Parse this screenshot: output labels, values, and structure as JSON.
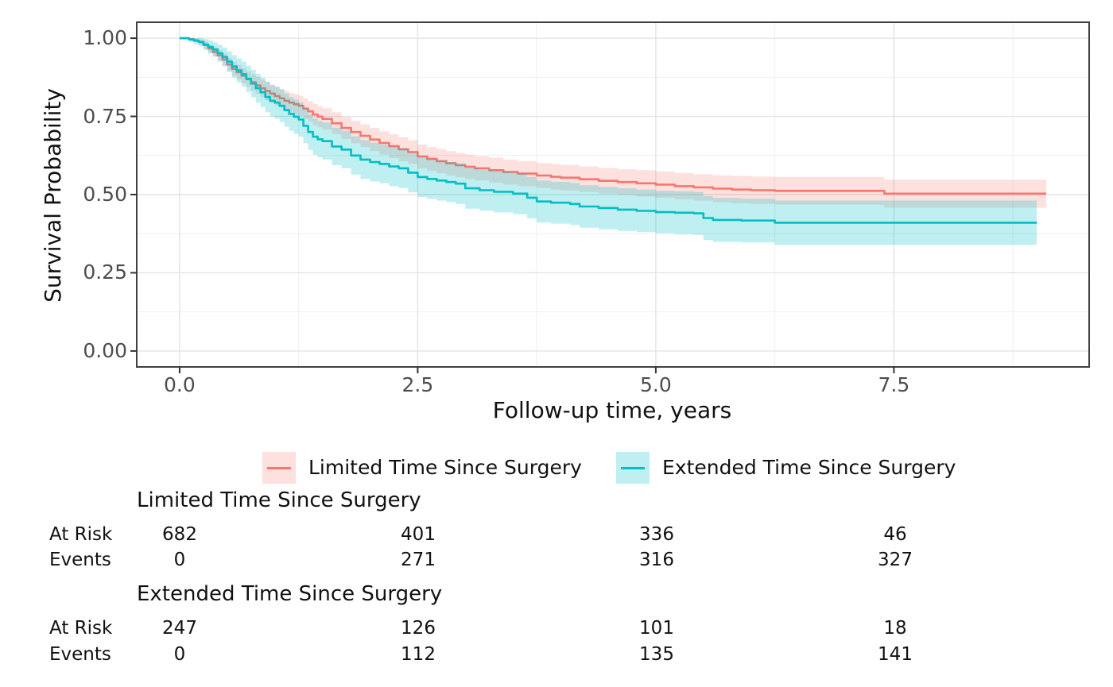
{
  "figure": {
    "xlabel": "Follow-up time, years",
    "ylabel": "Survival Probability"
  },
  "legend": {
    "items": [
      {
        "label": "Limited Time Since Surgery",
        "color": "#F8766D",
        "band_color": "rgba(248,118,109,0.22)"
      },
      {
        "label": "Extended Time Since Surgery",
        "color": "#00BFC4",
        "band_color": "rgba(0,191,196,0.25)"
      }
    ]
  },
  "risk_table": {
    "groups": [
      {
        "name": "Limited Time Since Surgery",
        "rows": [
          {
            "label": "At Risk",
            "values": [
              "682",
              "401",
              "336",
              "46"
            ]
          },
          {
            "label": "Events",
            "values": [
              "0",
              "271",
              "316",
              "327"
            ]
          }
        ]
      },
      {
        "name": "Extended Time Since Surgery",
        "rows": [
          {
            "label": "At Risk",
            "values": [
              "247",
              "126",
              "101",
              "18"
            ]
          },
          {
            "label": "Events",
            "values": [
              "0",
              "112",
              "135",
              "141"
            ]
          }
        ]
      }
    ]
  },
  "chart_data": {
    "type": "line",
    "subtype": "kaplan-meier-step-curves-with-confidence-bands",
    "title": "",
    "xlabel": "Follow-up time, years",
    "ylabel": "Survival Probability",
    "xlim": [
      -0.45,
      9.55
    ],
    "ylim": [
      -0.051,
      1.051
    ],
    "x_major_ticks": [
      0,
      2.5,
      5,
      7.5
    ],
    "x_tick_labels": [
      "0.0",
      "2.5",
      "5.0",
      "7.5"
    ],
    "x_minor_gridlines": [
      1.25,
      3.75,
      6.25,
      8.75
    ],
    "y_major_ticks": [
      0,
      0.25,
      0.5,
      0.75,
      1.0
    ],
    "y_tick_labels": [
      "0.00",
      "0.25",
      "0.50",
      "0.75",
      "1.00"
    ],
    "y_minor_gridlines": [
      0.125,
      0.375,
      0.625,
      0.875
    ],
    "grid": true,
    "grid_major_color": "#e3e3e3",
    "grid_minor_color": "#f1f1f1",
    "border_color": "#404040",
    "tick_color": "#333333",
    "legend_position": "bottom",
    "series": [
      {
        "name": "Limited Time Since Surgery",
        "color": "#F8766D",
        "band_color": "rgba(248,118,109,0.22)",
        "points_format": [
          "time_years",
          "survival",
          "ci_lower",
          "ci_upper"
        ],
        "points": [
          [
            0,
            1.0,
            1.0,
            1.0
          ],
          [
            0.1,
            0.997,
            0.993,
            1.0
          ],
          [
            0.15,
            0.993,
            0.987,
            0.999
          ],
          [
            0.2,
            0.988,
            0.98,
            0.996
          ],
          [
            0.25,
            0.978,
            0.967,
            0.989
          ],
          [
            0.3,
            0.967,
            0.954,
            0.98
          ],
          [
            0.35,
            0.956,
            0.941,
            0.971
          ],
          [
            0.4,
            0.945,
            0.928,
            0.962
          ],
          [
            0.45,
            0.932,
            0.913,
            0.951
          ],
          [
            0.5,
            0.916,
            0.895,
            0.937
          ],
          [
            0.55,
            0.902,
            0.88,
            0.924
          ],
          [
            0.6,
            0.891,
            0.868,
            0.914
          ],
          [
            0.65,
            0.88,
            0.856,
            0.904
          ],
          [
            0.7,
            0.869,
            0.844,
            0.894
          ],
          [
            0.75,
            0.859,
            0.833,
            0.885
          ],
          [
            0.8,
            0.849,
            0.822,
            0.876
          ],
          [
            0.85,
            0.84,
            0.812,
            0.868
          ],
          [
            0.9,
            0.831,
            0.802,
            0.86
          ],
          [
            0.95,
            0.823,
            0.794,
            0.852
          ],
          [
            1.0,
            0.815,
            0.785,
            0.845
          ],
          [
            1.05,
            0.808,
            0.778,
            0.838
          ],
          [
            1.1,
            0.8,
            0.769,
            0.831
          ],
          [
            1.15,
            0.794,
            0.763,
            0.825
          ],
          [
            1.2,
            0.789,
            0.757,
            0.821
          ],
          [
            1.25,
            0.784,
            0.752,
            0.816
          ],
          [
            1.3,
            0.775,
            0.742,
            0.808
          ],
          [
            1.35,
            0.766,
            0.733,
            0.799
          ],
          [
            1.4,
            0.756,
            0.722,
            0.79
          ],
          [
            1.45,
            0.749,
            0.715,
            0.783
          ],
          [
            1.5,
            0.742,
            0.708,
            0.776
          ],
          [
            1.6,
            0.728,
            0.693,
            0.763
          ],
          [
            1.7,
            0.713,
            0.678,
            0.748
          ],
          [
            1.8,
            0.7,
            0.664,
            0.736
          ],
          [
            1.9,
            0.688,
            0.652,
            0.724
          ],
          [
            2.0,
            0.676,
            0.639,
            0.713
          ],
          [
            2.1,
            0.665,
            0.628,
            0.702
          ],
          [
            2.2,
            0.655,
            0.617,
            0.693
          ],
          [
            2.3,
            0.645,
            0.607,
            0.683
          ],
          [
            2.4,
            0.636,
            0.598,
            0.674
          ],
          [
            2.5,
            0.622,
            0.584,
            0.66
          ],
          [
            2.6,
            0.614,
            0.576,
            0.652
          ],
          [
            2.7,
            0.607,
            0.568,
            0.646
          ],
          [
            2.8,
            0.6,
            0.561,
            0.639
          ],
          [
            2.9,
            0.594,
            0.555,
            0.633
          ],
          [
            3.0,
            0.589,
            0.55,
            0.628
          ],
          [
            3.1,
            0.584,
            0.545,
            0.623
          ],
          [
            3.25,
            0.578,
            0.538,
            0.618
          ],
          [
            3.4,
            0.572,
            0.532,
            0.612
          ],
          [
            3.55,
            0.567,
            0.527,
            0.607
          ],
          [
            3.75,
            0.561,
            0.521,
            0.601
          ],
          [
            3.9,
            0.557,
            0.516,
            0.598
          ],
          [
            4.0,
            0.554,
            0.513,
            0.595
          ],
          [
            4.2,
            0.549,
            0.508,
            0.59
          ],
          [
            4.4,
            0.544,
            0.503,
            0.585
          ],
          [
            4.6,
            0.54,
            0.499,
            0.581
          ],
          [
            4.8,
            0.536,
            0.494,
            0.578
          ],
          [
            5.0,
            0.532,
            0.49,
            0.574
          ],
          [
            5.2,
            0.527,
            0.485,
            0.569
          ],
          [
            5.4,
            0.523,
            0.481,
            0.565
          ],
          [
            5.6,
            0.519,
            0.476,
            0.562
          ],
          [
            5.8,
            0.516,
            0.472,
            0.56
          ],
          [
            6.0,
            0.514,
            0.47,
            0.558
          ],
          [
            6.25,
            0.512,
            0.468,
            0.556
          ],
          [
            7.35,
            0.512,
            0.468,
            0.556
          ],
          [
            7.4,
            0.503,
            0.458,
            0.548
          ],
          [
            9.1,
            0.503,
            0.458,
            0.548
          ]
        ]
      },
      {
        "name": "Extended Time Since Surgery",
        "color": "#00BFC4",
        "band_color": "rgba(0,191,196,0.25)",
        "points_format": [
          "time_years",
          "survival",
          "ci_lower",
          "ci_upper"
        ],
        "points": [
          [
            0,
            1.0,
            1.0,
            1.0
          ],
          [
            0.1,
            0.996,
            0.988,
            1.0
          ],
          [
            0.15,
            0.992,
            0.981,
            1.0
          ],
          [
            0.2,
            0.988,
            0.974,
            1.0
          ],
          [
            0.25,
            0.98,
            0.963,
            0.997
          ],
          [
            0.3,
            0.972,
            0.951,
            0.993
          ],
          [
            0.35,
            0.964,
            0.941,
            0.987
          ],
          [
            0.4,
            0.952,
            0.925,
            0.979
          ],
          [
            0.45,
            0.94,
            0.91,
            0.97
          ],
          [
            0.5,
            0.925,
            0.892,
            0.958
          ],
          [
            0.55,
            0.91,
            0.874,
            0.946
          ],
          [
            0.6,
            0.897,
            0.859,
            0.935
          ],
          [
            0.65,
            0.885,
            0.845,
            0.925
          ],
          [
            0.7,
            0.87,
            0.828,
            0.912
          ],
          [
            0.75,
            0.855,
            0.811,
            0.899
          ],
          [
            0.8,
            0.84,
            0.794,
            0.886
          ],
          [
            0.85,
            0.827,
            0.78,
            0.874
          ],
          [
            0.9,
            0.812,
            0.763,
            0.861
          ],
          [
            0.95,
            0.8,
            0.75,
            0.85
          ],
          [
            1.0,
            0.794,
            0.743,
            0.845
          ],
          [
            1.05,
            0.784,
            0.732,
            0.836
          ],
          [
            1.1,
            0.77,
            0.717,
            0.823
          ],
          [
            1.15,
            0.758,
            0.704,
            0.812
          ],
          [
            1.2,
            0.749,
            0.694,
            0.804
          ],
          [
            1.25,
            0.74,
            0.685,
            0.795
          ],
          [
            1.3,
            0.72,
            0.664,
            0.776
          ],
          [
            1.35,
            0.7,
            0.643,
            0.757
          ],
          [
            1.4,
            0.685,
            0.627,
            0.743
          ],
          [
            1.45,
            0.677,
            0.619,
            0.735
          ],
          [
            1.5,
            0.671,
            0.612,
            0.73
          ],
          [
            1.6,
            0.654,
            0.594,
            0.714
          ],
          [
            1.7,
            0.644,
            0.584,
            0.704
          ],
          [
            1.8,
            0.625,
            0.564,
            0.686
          ],
          [
            1.9,
            0.612,
            0.55,
            0.674
          ],
          [
            2.0,
            0.604,
            0.542,
            0.666
          ],
          [
            2.1,
            0.598,
            0.536,
            0.66
          ],
          [
            2.2,
            0.59,
            0.527,
            0.653
          ],
          [
            2.3,
            0.584,
            0.521,
            0.647
          ],
          [
            2.4,
            0.57,
            0.507,
            0.633
          ],
          [
            2.5,
            0.556,
            0.492,
            0.62
          ],
          [
            2.6,
            0.55,
            0.486,
            0.614
          ],
          [
            2.7,
            0.545,
            0.481,
            0.609
          ],
          [
            2.8,
            0.54,
            0.476,
            0.604
          ],
          [
            2.9,
            0.535,
            0.47,
            0.6
          ],
          [
            3.0,
            0.52,
            0.455,
            0.585
          ],
          [
            3.15,
            0.514,
            0.449,
            0.579
          ],
          [
            3.3,
            0.509,
            0.443,
            0.575
          ],
          [
            3.5,
            0.503,
            0.437,
            0.569
          ],
          [
            3.65,
            0.49,
            0.424,
            0.556
          ],
          [
            3.75,
            0.478,
            0.411,
            0.545
          ],
          [
            3.9,
            0.474,
            0.407,
            0.541
          ],
          [
            4.1,
            0.47,
            0.403,
            0.537
          ],
          [
            4.2,
            0.462,
            0.394,
            0.53
          ],
          [
            4.4,
            0.457,
            0.389,
            0.525
          ],
          [
            4.6,
            0.452,
            0.384,
            0.52
          ],
          [
            4.8,
            0.448,
            0.38,
            0.516
          ],
          [
            5.0,
            0.444,
            0.376,
            0.512
          ],
          [
            5.2,
            0.442,
            0.373,
            0.511
          ],
          [
            5.4,
            0.44,
            0.371,
            0.509
          ],
          [
            5.5,
            0.425,
            0.355,
            0.495
          ],
          [
            5.6,
            0.419,
            0.349,
            0.489
          ],
          [
            5.9,
            0.417,
            0.347,
            0.487
          ],
          [
            6.25,
            0.41,
            0.339,
            0.481
          ],
          [
            9.0,
            0.41,
            0.339,
            0.481
          ]
        ]
      }
    ]
  }
}
